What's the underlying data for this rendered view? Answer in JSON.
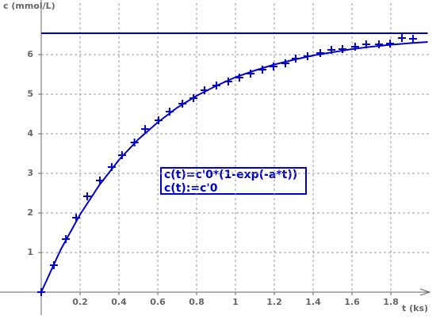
{
  "chart_data": {
    "type": "scatter",
    "y_label": "c (mmol/L)",
    "x_label": "t (ks)",
    "annotations": [
      "c(t)=c'0*(1-exp(-a*t))",
      "c(t):=c'0"
    ],
    "xlim": [
      -0.2,
      2.0
    ],
    "ylim": [
      -0.5,
      7.3
    ],
    "xticks": [
      0.2,
      0.4,
      0.6,
      0.8,
      1,
      1.2,
      1.4,
      1.6,
      1.8
    ],
    "yticks": [
      1,
      2,
      3,
      4,
      5,
      6
    ],
    "grid": true,
    "series": [
      {
        "type": "scatter",
        "color": "#0000c8",
        "x": [
          0,
          0.065,
          0.127,
          0.18,
          0.237,
          0.302,
          0.363,
          0.416,
          0.48,
          0.535,
          0.604,
          0.661,
          0.727,
          0.784,
          0.841,
          0.902,
          0.963,
          1.02,
          1.078,
          1.139,
          1.196,
          1.257,
          1.31,
          1.371,
          1.437,
          1.494,
          1.551,
          1.616,
          1.673,
          1.739,
          1.796,
          1.857,
          1.914
        ],
        "values": [
          0,
          0.68,
          1.34,
          1.88,
          2.42,
          2.82,
          3.16,
          3.46,
          3.78,
          4.12,
          4.34,
          4.56,
          4.76,
          4.9,
          5.1,
          5.22,
          5.32,
          5.42,
          5.52,
          5.62,
          5.7,
          5.78,
          5.9,
          5.96,
          6.04,
          6.12,
          6.14,
          6.2,
          6.26,
          6.26,
          6.28,
          6.42,
          6.4
        ]
      },
      {
        "type": "line",
        "color": "#0000c8",
        "x": [
          0,
          0.1,
          0.2,
          0.3,
          0.4,
          0.5,
          0.6,
          0.7,
          0.8,
          0.9,
          1.0,
          1.1,
          1.2,
          1.3,
          1.4,
          1.5,
          1.6,
          1.7,
          1.8,
          1.9,
          1.99
        ],
        "values": [
          0,
          1.07,
          1.96,
          2.71,
          3.34,
          3.86,
          4.29,
          4.66,
          4.96,
          5.21,
          5.43,
          5.6,
          5.75,
          5.87,
          5.98,
          6.06,
          6.14,
          6.2,
          6.25,
          6.29,
          6.32
        ]
      },
      {
        "type": "line",
        "color": "#0000c8",
        "x": [
          0,
          1.99
        ],
        "values": [
          6.54,
          6.54
        ]
      }
    ]
  }
}
